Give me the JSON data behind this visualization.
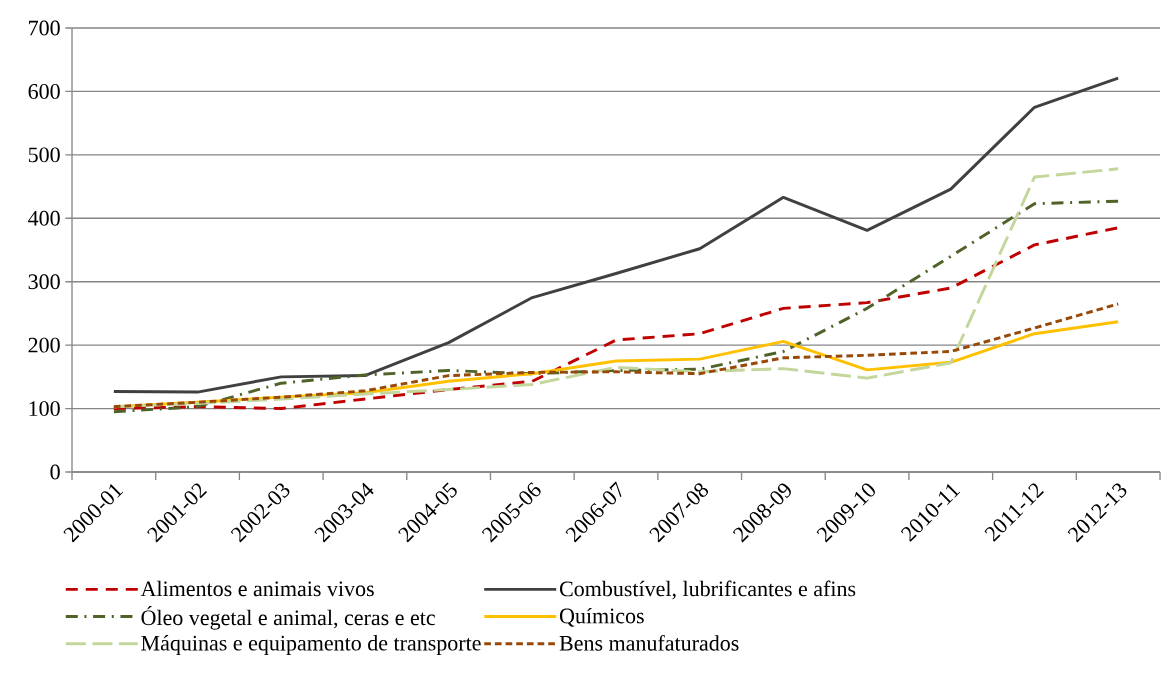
{
  "chart_data": {
    "type": "line",
    "categories": [
      "2000-01",
      "2001-02",
      "2002-03",
      "2003-04",
      "2004-05",
      "2005-06",
      "2006-07",
      "2007-08",
      "2008-09",
      "2009-10",
      "2010-11",
      "2011-12",
      "2012-13"
    ],
    "series": [
      {
        "name": "Alimentos e animais vivos",
        "color": "#c00000",
        "line_style": "dashed",
        "values": [
          100,
          103,
          100,
          115,
          130,
          143,
          208,
          218,
          258,
          267,
          290,
          358,
          385
        ]
      },
      {
        "name": "Combustível, lubrificantes e afins",
        "color": "#404040",
        "line_style": "solid",
        "values": [
          127,
          126,
          150,
          152,
          204,
          275,
          313,
          352,
          433,
          381,
          446,
          575,
          621
        ]
      },
      {
        "name": "Óleo vegetal e animal, ceras e etc",
        "color": "#4f6228",
        "line_style": "dashdot",
        "values": [
          95,
          103,
          140,
          153,
          160,
          155,
          160,
          162,
          190,
          258,
          340,
          423,
          427
        ]
      },
      {
        "name": "Químicos",
        "color": "#ffc000",
        "line_style": "solid",
        "values": [
          103,
          110,
          118,
          125,
          143,
          155,
          175,
          178,
          206,
          161,
          173,
          218,
          237
        ]
      },
      {
        "name": "Máquinas e equipamento de transporte",
        "color": "#c3d69b",
        "line_style": "longdash",
        "values": [
          103,
          108,
          115,
          123,
          130,
          138,
          165,
          158,
          163,
          148,
          172,
          465,
          478
        ]
      },
      {
        "name": "Bens manufaturados",
        "color": "#984807",
        "line_style": "dotted",
        "values": [
          103,
          110,
          118,
          128,
          152,
          157,
          158,
          155,
          180,
          184,
          190,
          227,
          265
        ]
      }
    ],
    "ylim": [
      0,
      700
    ],
    "yticks": [
      0,
      100,
      200,
      300,
      400,
      500,
      600,
      700
    ],
    "grid": "y",
    "legend": "bottom",
    "marker": "none"
  }
}
